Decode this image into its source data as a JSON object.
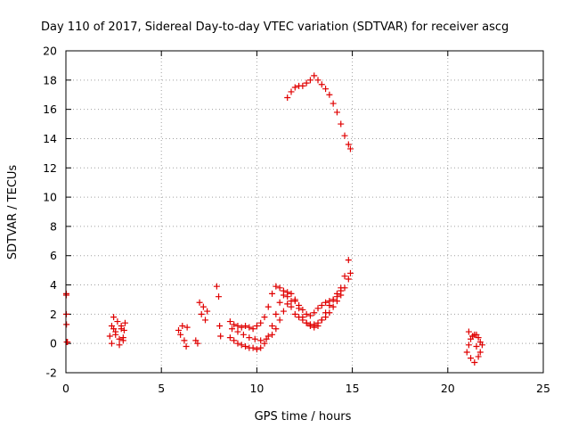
{
  "chart_data": {
    "type": "scatter",
    "title": "Day 110 of 2017, Sidereal Day-to-day VTEC variation (SDTVAR) for receiver ascg",
    "xlabel": "GPS time / hours",
    "ylabel": "SDTVAR / TECUs",
    "xlim": [
      0,
      25
    ],
    "ylim": [
      -2,
      20
    ],
    "xticks": [
      "0",
      "5",
      "10",
      "15",
      "20",
      "25"
    ],
    "yticks": [
      "-2",
      "0",
      "2",
      "4",
      "6",
      "8",
      "10",
      "12",
      "14",
      "16",
      "18",
      "20"
    ],
    "grid": true,
    "marker": "+",
    "color": "#e00000",
    "series": [
      {
        "name": "SDTVAR",
        "x": [
          0.02,
          0.02,
          0.02,
          0.03,
          0.05,
          0.08,
          2.3,
          2.4,
          2.5,
          2.6,
          2.7,
          2.8,
          2.9,
          3.0,
          3.1,
          2.4,
          2.6,
          2.8,
          3.0,
          2.5,
          2.9,
          3.05,
          5.9,
          6.0,
          6.1,
          6.2,
          6.3,
          6.35,
          6.8,
          6.9,
          7.0,
          7.1,
          7.2,
          7.3,
          7.4,
          7.9,
          8.0,
          8.05,
          8.1,
          8.6,
          8.8,
          9.0,
          9.2,
          9.4,
          9.6,
          9.8,
          10.0,
          10.2,
          10.4,
          10.6,
          10.8,
          11.0,
          11.2,
          11.4,
          11.6,
          11.8,
          12.0,
          12.2,
          12.4,
          12.6,
          12.8,
          13.0,
          13.2,
          13.4,
          13.6,
          13.8,
          14.0,
          14.2,
          14.4,
          14.6,
          14.8,
          14.9,
          8.6,
          8.8,
          9.0,
          9.2,
          9.4,
          9.6,
          9.8,
          10.0,
          10.2,
          10.4,
          10.6,
          10.8,
          11.0,
          11.2,
          11.4,
          11.6,
          11.8,
          12.0,
          12.2,
          12.4,
          12.6,
          12.8,
          13.0,
          13.2,
          13.4,
          13.6,
          13.8,
          14.0,
          14.2,
          14.4,
          14.6,
          14.8,
          8.7,
          9.0,
          9.3,
          9.6,
          9.9,
          10.2,
          10.5,
          10.8,
          11.0,
          11.2,
          11.4,
          11.6,
          11.8,
          12.0,
          12.2,
          12.4,
          12.6,
          12.8,
          13.0,
          13.2,
          13.4,
          13.6,
          13.8,
          14.0,
          14.2,
          14.4,
          11.6,
          11.8,
          12.0,
          12.2,
          12.4,
          12.6,
          12.8,
          13.0,
          13.2,
          13.4,
          13.6,
          13.8,
          14.0,
          14.2,
          14.4,
          14.6,
          14.8,
          14.9,
          21.0,
          21.1,
          21.2,
          21.3,
          21.4,
          21.5,
          21.6,
          21.7,
          21.8,
          21.2,
          21.4,
          21.6,
          21.1,
          21.3,
          21.5,
          21.7
        ],
        "y": [
          3.4,
          3.3,
          2.0,
          1.3,
          0.1,
          0.1,
          0.5,
          1.2,
          1.8,
          0.8,
          1.5,
          0.3,
          1.0,
          0.2,
          1.4,
          0.0,
          0.6,
          -0.1,
          0.4,
          1.0,
          1.2,
          0.9,
          0.9,
          0.6,
          1.2,
          0.2,
          -0.2,
          1.1,
          0.2,
          0.0,
          2.8,
          2.0,
          2.5,
          1.6,
          2.2,
          3.9,
          3.2,
          1.2,
          0.5,
          1.5,
          1.3,
          1.2,
          1.1,
          1.2,
          1.1,
          1.0,
          1.2,
          1.4,
          1.8,
          2.5,
          3.4,
          3.9,
          3.8,
          3.6,
          3.2,
          2.5,
          2.0,
          1.8,
          1.6,
          1.4,
          1.3,
          1.3,
          1.4,
          1.6,
          1.8,
          2.1,
          2.5,
          2.9,
          3.3,
          3.8,
          4.4,
          4.8,
          0.4,
          0.2,
          0.0,
          -0.1,
          -0.2,
          -0.3,
          -0.3,
          -0.4,
          -0.3,
          0.0,
          0.5,
          1.2,
          2.0,
          2.8,
          3.3,
          3.5,
          3.4,
          3.0,
          2.4,
          1.8,
          1.4,
          1.2,
          1.1,
          1.2,
          1.6,
          2.1,
          2.6,
          3.0,
          3.4,
          3.8,
          4.6,
          5.7,
          1.0,
          0.8,
          0.6,
          0.4,
          0.3,
          0.2,
          0.3,
          0.6,
          1.0,
          1.6,
          2.2,
          2.7,
          2.9,
          2.9,
          2.6,
          2.3,
          2.0,
          1.9,
          2.1,
          2.4,
          2.6,
          2.8,
          2.9,
          3.0,
          3.2,
          3.6,
          16.8,
          17.2,
          17.5,
          17.6,
          17.6,
          17.8,
          18.0,
          18.3,
          18.0,
          17.7,
          17.4,
          17.0,
          16.4,
          15.8,
          15.0,
          14.2,
          13.6,
          13.3,
          -0.6,
          -0.1,
          0.3,
          0.5,
          0.6,
          0.6,
          0.4,
          0.1,
          -0.1,
          -1.0,
          -1.3,
          -0.9,
          0.8,
          0.5,
          -0.2,
          -0.6
        ]
      }
    ]
  }
}
